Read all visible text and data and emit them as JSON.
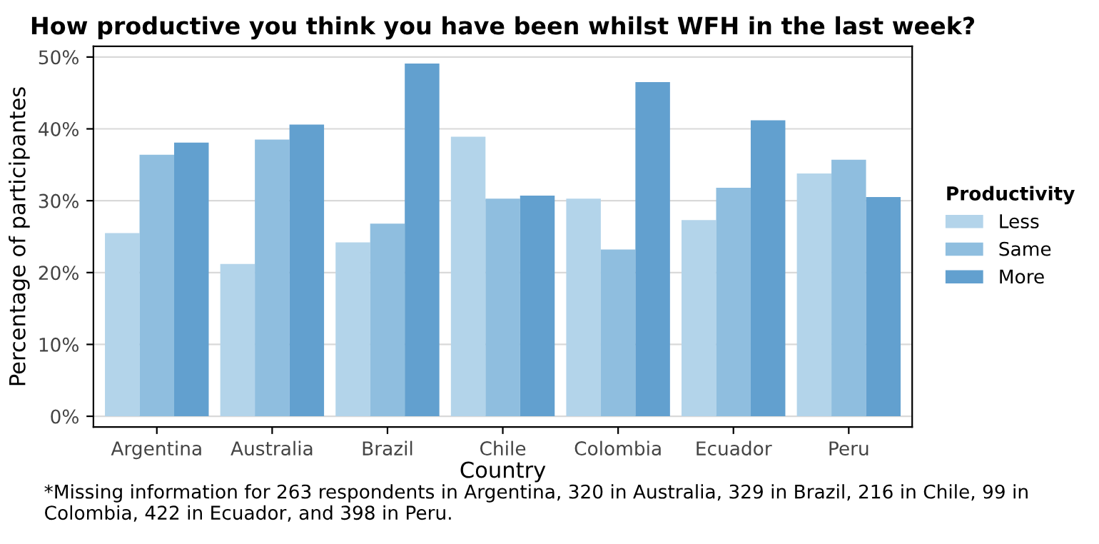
{
  "chart_data": {
    "type": "bar",
    "title": "How productive you think you have been whilst WFH in the last week?",
    "xlabel": "Country",
    "ylabel": "Percentage of participantes",
    "legend_title": "Productivity",
    "legend": "right",
    "categories": [
      "Argentina",
      "Australia",
      "Brazil",
      "Chile",
      "Colombia",
      "Ecuador",
      "Peru"
    ],
    "series": [
      {
        "name": "Less",
        "color": "#b3d4ea",
        "values": [
          25.5,
          21.2,
          24.2,
          38.9,
          30.3,
          27.3,
          33.8
        ]
      },
      {
        "name": "Same",
        "color": "#8fbedf",
        "values": [
          36.4,
          38.5,
          26.8,
          30.3,
          23.2,
          31.8,
          35.7
        ]
      },
      {
        "name": "More",
        "color": "#62a0cf",
        "values": [
          38.1,
          40.6,
          49.1,
          30.7,
          46.5,
          41.2,
          30.5
        ]
      }
    ],
    "ylim": [
      -1.5,
      51.5
    ],
    "yticks": [
      {
        "value": 0,
        "label": "0%"
      },
      {
        "value": 10,
        "label": "10%"
      },
      {
        "value": 20,
        "label": "20%"
      },
      {
        "value": 30,
        "label": "30%"
      },
      {
        "value": 40,
        "label": "40%"
      },
      {
        "value": 50,
        "label": "50%"
      }
    ],
    "grid": "y",
    "annotations": [
      "*Missing information for 263 respondents in Argentina, 320 in Australia, 329 in Brazil, 216 in Chile, 99 in Colombia, 422 in Ecuador, and 398 in Peru."
    ]
  }
}
